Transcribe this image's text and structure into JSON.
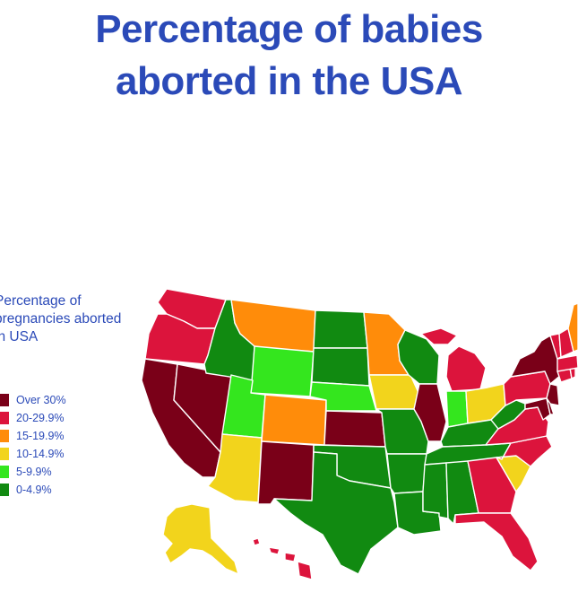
{
  "title": {
    "line1": "Percentage of babies",
    "line2": "aborted in the USA"
  },
  "legend": {
    "title_lines": [
      "Percentage of",
      "pregnancies aborted",
      "in USA"
    ],
    "items": [
      {
        "label": "Over 30%",
        "color": "#7a0018"
      },
      {
        "label": "20-29.9%",
        "color": "#dc143c"
      },
      {
        "label": "15-19.9%",
        "color": "#ff8c0a"
      },
      {
        "label": "10-14.9%",
        "color": "#f2d41c"
      },
      {
        "label": "5-9.9%",
        "color": "#34e61e"
      },
      {
        "label": "0-4.9%",
        "color": "#118a11"
      }
    ]
  },
  "map_data": {
    "states": {
      "WA": "20-29.9%",
      "OR": "20-29.9%",
      "CA": "Over 30%",
      "NV": "Over 30%",
      "ID": "0-4.9%",
      "MT": "15-19.9%",
      "WY": "5-9.9%",
      "UT": "5-9.9%",
      "AZ": "10-14.9%",
      "CO": "15-19.9%",
      "NM": "Over 30%",
      "ND": "0-4.9%",
      "SD": "0-4.9%",
      "NE": "5-9.9%",
      "KS": "Over 30%",
      "OK": "0-4.9%",
      "TX": "0-4.9%",
      "MN": "15-19.9%",
      "IA": "10-14.9%",
      "MO": "0-4.9%",
      "AR": "0-4.9%",
      "LA": "0-4.9%",
      "WI": "0-4.9%",
      "IL": "Over 30%",
      "MI": "20-29.9%",
      "IN": "5-9.9%",
      "OH": "10-14.9%",
      "KY": "0-4.9%",
      "TN": "0-4.9%",
      "MS": "0-4.9%",
      "AL": "0-4.9%",
      "GA": "20-29.9%",
      "FL": "20-29.9%",
      "SC": "10-14.9%",
      "NC": "20-29.9%",
      "VA": "20-29.9%",
      "WV": "0-4.9%",
      "PA": "20-29.9%",
      "NY": "Over 30%",
      "NJ": "Over 30%",
      "MD": "Over 30%",
      "DE": "Over 30%",
      "CT": "20-29.9%",
      "RI": "20-29.9%",
      "MA": "20-29.9%",
      "VT": "20-29.9%",
      "NH": "20-29.9%",
      "ME": "15-19.9%",
      "AK": "10-14.9%",
      "HI": "20-29.9%"
    }
  }
}
